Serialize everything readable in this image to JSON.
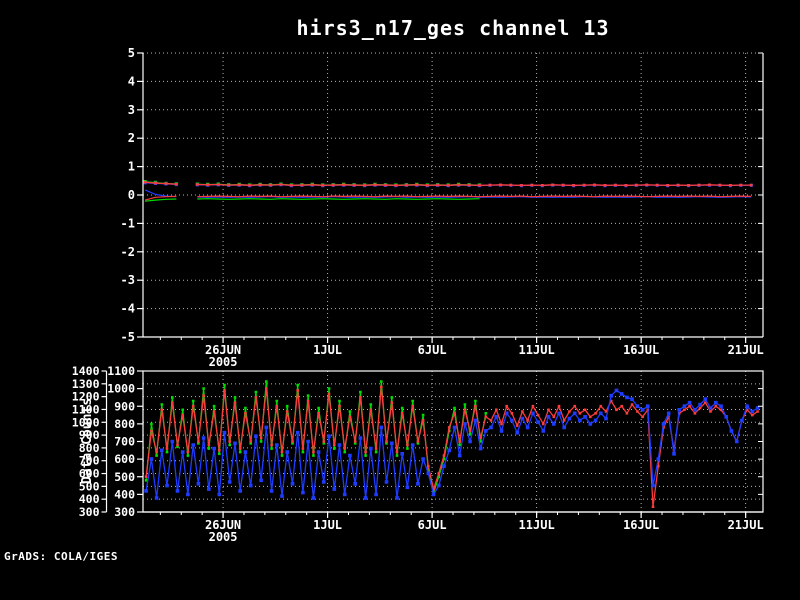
{
  "title": "hirs3_n17_ges channel 13",
  "watermark": "GrADS: COLA/IGES",
  "colors": {
    "red": "#fa3c3c",
    "green": "#00dc00",
    "blue": "#1e3cff",
    "grid": "#b4b4b4",
    "frame": "#ffffff",
    "background": "#000000",
    "text": "#ffffff"
  },
  "chart_data": [
    {
      "type": "line",
      "panel": "top",
      "title": "hirs3_n17_ges channel 13",
      "ylim": [
        -5,
        5
      ],
      "y_ticks": [
        5,
        4,
        3,
        2,
        1,
        0,
        -1,
        -2,
        -3,
        -4,
        -5
      ],
      "x_domain_days": [
        0,
        29.66
      ],
      "x_ticks": [
        {
          "day": 3.83,
          "label": "26JUN",
          "sublabel": "2005"
        },
        {
          "day": 8.83,
          "label": "1JUL"
        },
        {
          "day": 13.83,
          "label": "6JUL"
        },
        {
          "day": 18.83,
          "label": "11JUL"
        },
        {
          "day": 23.83,
          "label": "16JUL"
        },
        {
          "day": 28.83,
          "label": "21JUL"
        }
      ],
      "grid": "dotted",
      "series": [
        {
          "name": "upper-green",
          "color": "green",
          "x0": 0.1,
          "dx": 0.5,
          "marker": 3.4,
          "width": 1.1,
          "values": [
            0.47,
            0.44,
            0.41,
            0.39,
            null,
            0.38,
            0.37,
            0.38,
            0.36,
            0.37,
            0.35,
            0.37,
            0.36,
            0.38,
            0.35,
            0.36,
            0.37,
            0.35,
            0.36,
            0.37,
            0.36,
            0.35,
            0.37,
            0.36,
            0.35,
            0.36,
            0.37,
            0.35,
            0.36,
            0.35,
            0.37,
            0.36,
            0.35
          ]
        },
        {
          "name": "upper-blue",
          "color": "blue",
          "x0": 0.1,
          "dx": 0.5,
          "marker": 3.2,
          "width": 1.1,
          "values": [
            0.43,
            0.41,
            0.39,
            0.37,
            null,
            0.36,
            0.35,
            0.36,
            0.34,
            0.35,
            0.33,
            0.35,
            0.34,
            0.36,
            0.33,
            0.34,
            0.35,
            0.33,
            0.34,
            0.35,
            0.34,
            0.33,
            0.35,
            0.34,
            0.33,
            0.34,
            0.35,
            0.33,
            0.34,
            0.33,
            0.35,
            0.34,
            0.33,
            0.34,
            0.35,
            0.34,
            0.33,
            0.34,
            0.33,
            0.35,
            0.34,
            0.33,
            0.34,
            0.35,
            0.33,
            0.34,
            0.33,
            0.34,
            0.35,
            0.34,
            0.33,
            0.34,
            0.33,
            0.34,
            0.35,
            0.34,
            0.33,
            0.34,
            0.34
          ]
        },
        {
          "name": "upper-red",
          "color": "red",
          "x0": 0.1,
          "dx": 0.5,
          "marker": 2.6,
          "width": 1.3,
          "values": [
            0.45,
            0.42,
            0.4,
            0.38,
            null,
            0.37,
            0.36,
            0.37,
            0.35,
            0.36,
            0.34,
            0.36,
            0.35,
            0.37,
            0.34,
            0.35,
            0.36,
            0.34,
            0.35,
            0.36,
            0.35,
            0.34,
            0.36,
            0.35,
            0.34,
            0.35,
            0.36,
            0.34,
            0.35,
            0.34,
            0.36,
            0.35,
            0.34,
            0.35,
            0.36,
            0.35,
            0.34,
            0.35,
            0.34,
            0.36,
            0.35,
            0.34,
            0.35,
            0.36,
            0.34,
            0.35,
            0.34,
            0.35,
            0.36,
            0.35,
            0.34,
            0.35,
            0.34,
            0.35,
            0.36,
            0.35,
            0.34,
            0.35,
            0.35
          ]
        },
        {
          "name": "lower-green",
          "color": "green",
          "x0": 0.1,
          "dx": 0.5,
          "marker": 0,
          "width": 1.2,
          "values": [
            -0.22,
            -0.18,
            -0.15,
            -0.14,
            null,
            -0.14,
            -0.13,
            -0.14,
            -0.15,
            -0.14,
            -0.13,
            -0.14,
            -0.15,
            -0.13,
            -0.14,
            -0.15,
            -0.14,
            -0.13,
            -0.14,
            -0.15,
            -0.14,
            -0.13,
            -0.14,
            -0.15,
            -0.13,
            -0.14,
            -0.15,
            -0.14,
            -0.13,
            -0.14,
            -0.15,
            -0.14,
            -0.13
          ]
        },
        {
          "name": "lower-blue",
          "color": "blue",
          "x0": 0.1,
          "dx": 0.5,
          "marker": 0,
          "width": 1.2,
          "values": [
            0.18,
            0.02,
            -0.04,
            -0.06,
            null,
            -0.07,
            -0.08,
            -0.07,
            -0.08,
            -0.07,
            -0.08,
            -0.07,
            -0.06,
            -0.08,
            -0.07,
            -0.08,
            -0.07,
            -0.08,
            -0.06,
            -0.07,
            -0.08,
            -0.07,
            -0.08,
            -0.07,
            -0.06,
            -0.08,
            -0.07,
            -0.08,
            -0.07,
            -0.08,
            -0.07,
            -0.06,
            -0.08,
            -0.07,
            -0.08,
            -0.07,
            -0.06,
            -0.08,
            -0.07,
            -0.08,
            -0.07,
            -0.08,
            -0.06,
            -0.07,
            -0.08,
            -0.07,
            -0.08,
            -0.07,
            -0.06,
            -0.08,
            -0.07,
            -0.08,
            -0.07,
            -0.06,
            -0.07,
            -0.08,
            -0.07,
            -0.06,
            -0.07
          ]
        },
        {
          "name": "lower-red",
          "color": "red",
          "x0": 0.1,
          "dx": 0.5,
          "marker": 0,
          "width": 1.2,
          "values": [
            -0.18,
            -0.08,
            -0.06,
            -0.05,
            null,
            -0.06,
            -0.05,
            -0.04,
            -0.05,
            -0.06,
            -0.04,
            -0.05,
            -0.04,
            -0.06,
            -0.05,
            -0.04,
            -0.05,
            -0.06,
            -0.04,
            -0.05,
            -0.04,
            -0.05,
            -0.06,
            -0.04,
            -0.05,
            -0.04,
            -0.06,
            -0.05,
            -0.04,
            -0.05,
            -0.04,
            -0.05,
            -0.06,
            -0.05,
            -0.04,
            -0.05,
            -0.04,
            -0.06,
            -0.05,
            -0.04,
            -0.05,
            -0.04,
            -0.05,
            -0.06,
            -0.04,
            -0.05,
            -0.04,
            -0.05,
            -0.06,
            -0.05,
            -0.04,
            -0.05,
            -0.04,
            -0.05,
            -0.04,
            -0.06,
            -0.05,
            -0.04,
            -0.05
          ]
        }
      ]
    },
    {
      "type": "line",
      "panel": "bottom",
      "ylabel": "Data Counts",
      "y_left_outer": {
        "lim": [
          300,
          1400
        ],
        "ticks": [
          1400,
          1300,
          1200,
          1100,
          1000,
          900,
          800,
          700,
          600,
          500,
          400,
          300
        ]
      },
      "y_left_inner": {
        "lim": [
          300,
          1100
        ],
        "ticks": [
          1100,
          1000,
          900,
          800,
          700,
          600,
          500,
          400,
          300
        ]
      },
      "x_domain_days": [
        0,
        29.66
      ],
      "x_ticks": [
        {
          "day": 3.83,
          "label": "26JUN",
          "sublabel": "2005"
        },
        {
          "day": 8.83,
          "label": "1JUL"
        },
        {
          "day": 13.83,
          "label": "6JUL"
        },
        {
          "day": 18.83,
          "label": "11JUL"
        },
        {
          "day": 23.83,
          "label": "16JUL"
        },
        {
          "day": 28.83,
          "label": "21JUL"
        }
      ],
      "grid": "dotted",
      "series": [
        {
          "name": "counts-green",
          "color": "green",
          "x0": 0.15,
          "dx": 0.25,
          "marker": 2.6,
          "width": 1.2,
          "values": [
            480,
            800,
            620,
            910,
            640,
            950,
            670,
            880,
            620,
            930,
            690,
            1000,
            660,
            900,
            630,
            1020,
            680,
            950,
            640,
            890,
            690,
            980,
            700,
            1040,
            660,
            930,
            620,
            900,
            690,
            1020,
            640,
            960,
            620,
            890,
            690,
            1000,
            660,
            930,
            640,
            870,
            690,
            980,
            620,
            910,
            640,
            1040,
            690,
            950,
            620,
            890,
            660,
            930,
            690,
            850,
            540,
            410,
            500,
            600,
            760,
            890,
            680,
            910,
            740,
            930,
            700,
            860
          ]
        },
        {
          "name": "counts-red",
          "color": "red",
          "x0": 0.15,
          "dx": 0.25,
          "marker": 2.6,
          "width": 1.3,
          "values": [
            500,
            760,
            640,
            880,
            660,
            920,
            680,
            850,
            640,
            900,
            700,
            960,
            680,
            870,
            650,
            990,
            700,
            920,
            660,
            860,
            700,
            950,
            720,
            1000,
            680,
            900,
            640,
            870,
            700,
            990,
            660,
            930,
            640,
            860,
            700,
            970,
            680,
            900,
            660,
            840,
            700,
            950,
            640,
            880,
            660,
            1010,
            700,
            920,
            640,
            860,
            680,
            900,
            700,
            820,
            560,
            430,
            520,
            620,
            780,
            860,
            700,
            880,
            760,
            900,
            720,
            840,
            820,
            880,
            800,
            900,
            860,
            790,
            870,
            820,
            900,
            850,
            800,
            880,
            840,
            900,
            820,
            870,
            900,
            860,
            880,
            840,
            860,
            900,
            870,
            930,
            880,
            900,
            860,
            910,
            870,
            840,
            880,
            330,
            560,
            780,
            840,
            650,
            860,
            880,
            900,
            860,
            890,
            920,
            870,
            900,
            880,
            840,
            760,
            700,
            820,
            880,
            850,
            870
          ]
        },
        {
          "name": "counts-blue",
          "color": "blue",
          "x0": 0.15,
          "dx": 0.25,
          "marker": 3.6,
          "width": 1.3,
          "values": [
            420,
            600,
            380,
            650,
            450,
            700,
            420,
            640,
            400,
            680,
            460,
            720,
            430,
            660,
            400,
            750,
            470,
            690,
            420,
            640,
            450,
            730,
            480,
            780,
            420,
            680,
            390,
            640,
            460,
            750,
            410,
            700,
            380,
            640,
            470,
            730,
            430,
            680,
            400,
            620,
            460,
            720,
            380,
            660,
            400,
            780,
            470,
            690,
            380,
            630,
            440,
            680,
            460,
            600,
            520,
            400,
            450,
            560,
            650,
            780,
            620,
            800,
            700,
            820,
            660,
            760,
            780,
            840,
            760,
            860,
            820,
            750,
            830,
            780,
            860,
            810,
            760,
            840,
            800,
            860,
            780,
            830,
            860,
            820,
            840,
            800,
            820,
            860,
            830,
            960,
            990,
            970,
            950,
            940,
            900,
            880,
            900,
            450,
            600,
            800,
            860,
            630,
            880,
            900,
            920,
            880,
            910,
            940,
            890,
            920,
            900,
            840,
            760,
            700,
            820,
            900,
            870,
            890
          ]
        }
      ]
    }
  ]
}
